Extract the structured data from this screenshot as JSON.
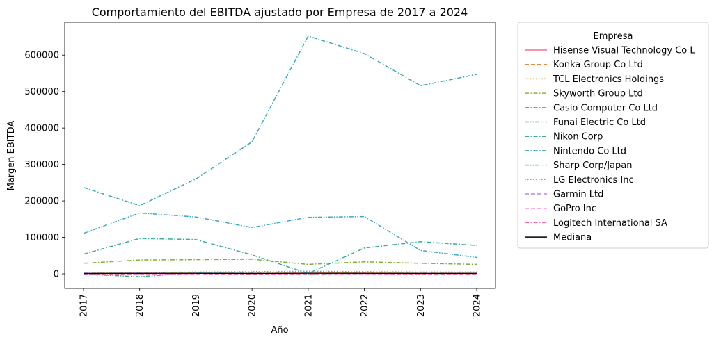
{
  "chart_data": {
    "type": "line",
    "title": "Comportamiento del EBITDA ajustado por Empresa de 2017 a 2024",
    "xlabel": "Año",
    "ylabel": "Margen EBITDA",
    "x": [
      "2017",
      "2018",
      "2019",
      "2020",
      "2021",
      "2022",
      "2023",
      "2024"
    ],
    "ylim": [
      -40000,
      690000
    ],
    "yticks": [
      0,
      100000,
      200000,
      300000,
      400000,
      500000,
      600000
    ],
    "ytick_labels": [
      "0",
      "100000",
      "200000",
      "300000",
      "400000",
      "500000",
      "600000"
    ],
    "grid": false,
    "legend": {
      "title": "Empresa",
      "placement": "outside-right"
    },
    "series": [
      {
        "name": "Hisense Visual Technology Co L",
        "color": "#f77189",
        "dash": "solid",
        "values": [
          1500,
          2000,
          2000,
          1500,
          2000,
          2000,
          1500,
          1500
        ]
      },
      {
        "name": "Konka Group Co Ltd",
        "color": "#e18a3c",
        "dash": "dashed",
        "values": [
          -500,
          0,
          500,
          -500,
          0,
          500,
          -500,
          -500
        ]
      },
      {
        "name": "TCL Electronics Holdings",
        "color": "#c19a32",
        "dash": "dotted",
        "values": [
          1000,
          1500,
          2000,
          1500,
          2000,
          2500,
          2000,
          2000
        ]
      },
      {
        "name": "Skyworth Group Ltd",
        "color": "#a1a831",
        "dash": "dashdot",
        "values": [
          2000,
          2500,
          3000,
          3000,
          2000,
          2500,
          2000,
          2000
        ]
      },
      {
        "name": "Casio Computer Co Ltd",
        "color": "#7db131",
        "dash": "dashdot",
        "values": [
          29000,
          38000,
          39000,
          40000,
          26000,
          33000,
          29000,
          26000
        ]
      },
      {
        "name": "Funai Electric Co Ltd",
        "color": "#33b07a",
        "dash": "dashdotdot",
        "values": [
          -1000,
          -8000,
          3000,
          2000,
          0,
          1000,
          500,
          500
        ]
      },
      {
        "name": "Nikon Corp",
        "color": "#35ad9c",
        "dash": "dashdot",
        "values": [
          54000,
          97000,
          94000,
          52000,
          1000,
          71000,
          88000,
          78000
        ]
      },
      {
        "name": "Nintendo Co Ltd",
        "color": "#38a9b2",
        "dash": "dashdot",
        "values": [
          237000,
          187000,
          260000,
          362000,
          652000,
          604000,
          516000,
          547000
        ]
      },
      {
        "name": "Sharp Corp/Japan",
        "color": "#3ca7c8",
        "dash": "dashdotdot",
        "values": [
          111000,
          167000,
          156000,
          127000,
          155000,
          157000,
          64000,
          45000
        ]
      },
      {
        "name": "LG Electronics Inc",
        "color": "#6e9bf4",
        "dash": "dotted",
        "values": [
          4000,
          4000,
          5000,
          6000,
          7000,
          6000,
          5000,
          5000
        ]
      },
      {
        "name": "Garmin Ltd",
        "color": "#bb83f4",
        "dash": "dashed",
        "values": [
          1000,
          1200,
          1300,
          1300,
          1500,
          1400,
          1200,
          1300
        ]
      },
      {
        "name": "GoPro Inc",
        "color": "#f45fd5",
        "dash": "dashed",
        "values": [
          -100,
          0,
          0,
          100,
          300,
          200,
          100,
          100
        ]
      },
      {
        "name": "Logitech International SA",
        "color": "#f66bb0",
        "dash": "dashdot",
        "values": [
          500,
          600,
          700,
          800,
          1500,
          1200,
          900,
          800
        ]
      },
      {
        "name": "Mediana",
        "color": "#000000",
        "dash": "solid",
        "values": [
          1000,
          1200,
          1300,
          1000,
          1500,
          1400,
          1200,
          1300
        ]
      }
    ]
  }
}
